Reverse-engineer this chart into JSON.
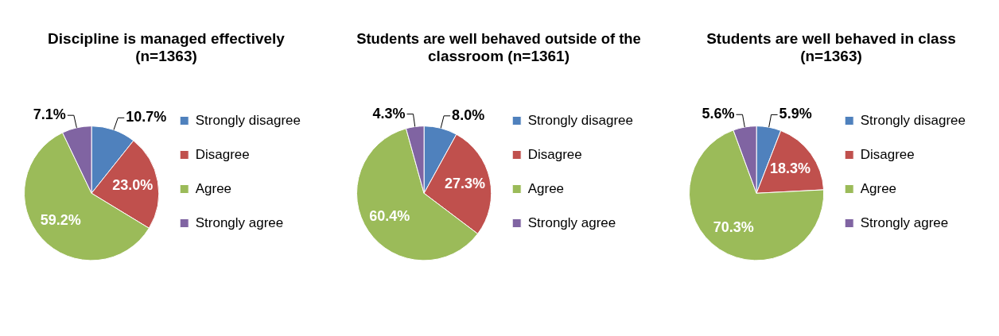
{
  "chart_data": [
    {
      "type": "pie",
      "title": "Discipline is managed effectively (n=1363)",
      "categories": [
        "Strongly disagree",
        "Disagree",
        "Agree",
        "Strongly agree"
      ],
      "values": [
        10.7,
        23.0,
        59.2,
        7.1
      ],
      "value_labels": [
        "10.7%",
        "23.0%",
        "59.2%",
        "7.1%"
      ],
      "colors": [
        "#4f81bd",
        "#c0504d",
        "#9bbb59",
        "#8064a2"
      ],
      "legend": "right"
    },
    {
      "type": "pie",
      "title": "Students are well behaved outside of the classroom (n=1361)",
      "categories": [
        "Strongly disagree",
        "Disagree",
        "Agree",
        "Strongly agree"
      ],
      "values": [
        8.0,
        27.3,
        60.4,
        4.3
      ],
      "value_labels": [
        "8.0%",
        "27.3%",
        "60.4%",
        "4.3%"
      ],
      "colors": [
        "#4f81bd",
        "#c0504d",
        "#9bbb59",
        "#8064a2"
      ],
      "legend": "right"
    },
    {
      "type": "pie",
      "title": "Students are well behaved in class (n=1363)",
      "categories": [
        "Strongly disagree",
        "Disagree",
        "Agree",
        "Strongly agree"
      ],
      "values": [
        5.9,
        18.3,
        70.3,
        5.6
      ],
      "value_labels": [
        "5.9%",
        "18.3%",
        "70.3%",
        "5.6%"
      ],
      "colors": [
        "#4f81bd",
        "#c0504d",
        "#9bbb59",
        "#8064a2"
      ],
      "legend": "right"
    }
  ]
}
